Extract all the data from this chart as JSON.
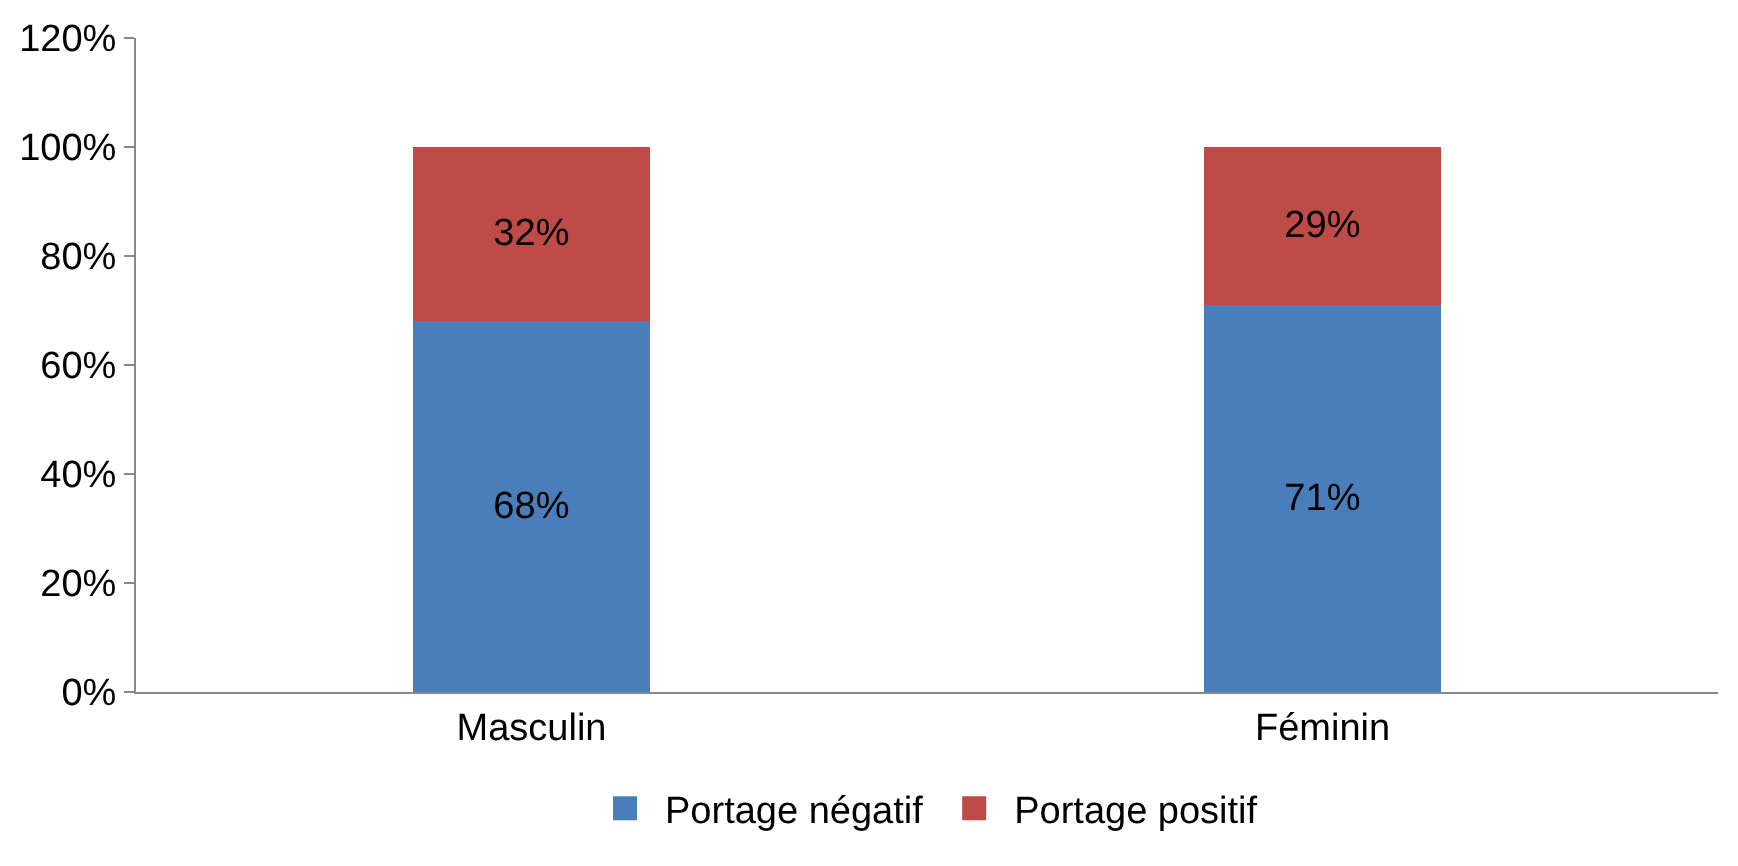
{
  "chart_data": {
    "type": "bar",
    "stacked": true,
    "categories": [
      "Masculin",
      "Féminin"
    ],
    "series": [
      {
        "name": "Portage négatif",
        "color": "#4a7ebb",
        "values": [
          68,
          71
        ],
        "value_labels": [
          "68%",
          "71%"
        ]
      },
      {
        "name": "Portage positif",
        "color": "#be4b48",
        "values": [
          32,
          29
        ],
        "value_labels": [
          "32%",
          "29%"
        ]
      }
    ],
    "ylim": [
      0,
      120
    ],
    "yticks": [
      {
        "value": 0,
        "label": "0%"
      },
      {
        "value": 20,
        "label": "20%"
      },
      {
        "value": 40,
        "label": "40%"
      },
      {
        "value": 60,
        "label": "60%"
      },
      {
        "value": 80,
        "label": "80%"
      },
      {
        "value": 100,
        "label": "100%"
      },
      {
        "value": 120,
        "label": "120%"
      }
    ],
    "legend": "bottom"
  }
}
